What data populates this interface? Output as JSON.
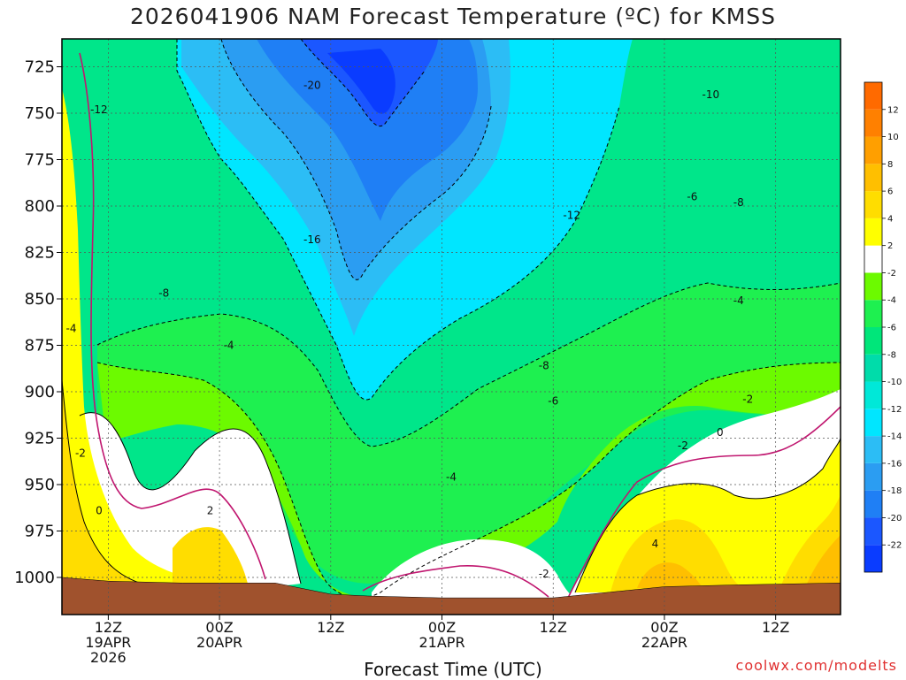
{
  "chart_data": {
    "type": "contour",
    "title": "2026041906 NAM Forecast Temperature (ºC) for KMSS",
    "xlabel": "Forecast Time (UTC)",
    "ylabel": "",
    "watermark": "coolwx.com/modelts",
    "y_axis": {
      "inverted": true,
      "range": [
        1020,
        710
      ],
      "ticks": [
        725,
        750,
        775,
        800,
        825,
        850,
        875,
        900,
        925,
        950,
        975,
        1000
      ]
    },
    "x_axis": {
      "range_hours": [
        7,
        91
      ],
      "ticks": [
        {
          "hour": 12,
          "lines": [
            "12Z",
            "19APR",
            "2026"
          ]
        },
        {
          "hour": 24,
          "lines": [
            "00Z",
            "20APR"
          ]
        },
        {
          "hour": 36,
          "lines": [
            "12Z"
          ]
        },
        {
          "hour": 48,
          "lines": [
            "00Z",
            "21APR"
          ]
        },
        {
          "hour": 60,
          "lines": [
            "12Z"
          ]
        },
        {
          "hour": 72,
          "lines": [
            "00Z",
            "22APR"
          ]
        },
        {
          "hour": 84,
          "lines": [
            "12Z"
          ]
        }
      ]
    },
    "colorbar": {
      "levels": [
        {
          "min": -24,
          "max": -22,
          "color": "#0a3cff"
        },
        {
          "min": -22,
          "max": -20,
          "color": "#1b57ff"
        },
        {
          "min": -20,
          "max": -18,
          "color": "#1f7ff5"
        },
        {
          "min": -18,
          "max": -16,
          "color": "#2b9df2"
        },
        {
          "min": -16,
          "max": -14,
          "color": "#2cbdf5"
        },
        {
          "min": -14,
          "max": -12,
          "color": "#00e6ff"
        },
        {
          "min": -12,
          "max": -10,
          "color": "#00e8d8"
        },
        {
          "min": -10,
          "max": -8,
          "color": "#00dcaa"
        },
        {
          "min": -8,
          "max": -6,
          "color": "#00e67a"
        },
        {
          "min": -6,
          "max": -4,
          "color": "#1ef050"
        },
        {
          "min": -4,
          "max": -2,
          "color": "#6cfa00"
        },
        {
          "min": -2,
          "max": 2,
          "color": "#ffffff"
        },
        {
          "min": 2,
          "max": 4,
          "color": "#ffff00"
        },
        {
          "min": 4,
          "max": 6,
          "color": "#ffdd00"
        },
        {
          "min": 6,
          "max": 8,
          "color": "#ffbf00"
        },
        {
          "min": 8,
          "max": 10,
          "color": "#ff9f00"
        },
        {
          "min": 10,
          "max": 12,
          "color": "#ff8000"
        },
        {
          "min": 12,
          "max": 14,
          "color": "#ff6a00"
        }
      ],
      "tick_labels": [
        "-22",
        "-20",
        "-18",
        "-16",
        "-14",
        "-12",
        "-10",
        "-8",
        "-6",
        "-4",
        "-2",
        "2",
        "4",
        "6",
        "8",
        "10",
        "12"
      ]
    },
    "isotherm_labels": [
      {
        "text": "-20",
        "hour": 34,
        "p": 735
      },
      {
        "text": "-12",
        "hour": 11,
        "p": 748
      },
      {
        "text": "-10",
        "hour": 77,
        "p": 740
      },
      {
        "text": "-6",
        "hour": 75,
        "p": 795
      },
      {
        "text": "-8",
        "hour": 80,
        "p": 798
      },
      {
        "text": "-16",
        "hour": 34,
        "p": 818
      },
      {
        "text": "-12",
        "hour": 62,
        "p": 805
      },
      {
        "text": "-8",
        "hour": 18,
        "p": 847
      },
      {
        "text": "-4",
        "hour": 8,
        "p": 866
      },
      {
        "text": "-4",
        "hour": 25,
        "p": 875
      },
      {
        "text": "-4",
        "hour": 80,
        "p": 851
      },
      {
        "text": "-8",
        "hour": 59,
        "p": 886
      },
      {
        "text": "-6",
        "hour": 60,
        "p": 905
      },
      {
        "text": "-2",
        "hour": 81,
        "p": 904
      },
      {
        "text": "-2",
        "hour": 9,
        "p": 933
      },
      {
        "text": "0",
        "hour": 78,
        "p": 922
      },
      {
        "text": "-2",
        "hour": 74,
        "p": 929
      },
      {
        "text": "-4",
        "hour": 49,
        "p": 946
      },
      {
        "text": "0",
        "hour": 11,
        "p": 964
      },
      {
        "text": "2",
        "hour": 23,
        "p": 964
      },
      {
        "text": "4",
        "hour": 71,
        "p": 982
      },
      {
        "text": "-2",
        "hour": 59,
        "p": 998
      }
    ],
    "surface_pressure_hpa": [
      {
        "hour": 7,
        "p": 1000
      },
      {
        "hour": 12,
        "p": 1002
      },
      {
        "hour": 20,
        "p": 1003
      },
      {
        "hour": 30,
        "p": 1003
      },
      {
        "hour": 36,
        "p": 1009
      },
      {
        "hour": 40,
        "p": 1010
      },
      {
        "hour": 48,
        "p": 1011
      },
      {
        "hour": 52,
        "p": 1011
      },
      {
        "hour": 60,
        "p": 1011
      },
      {
        "hour": 66,
        "p": 1008
      },
      {
        "hour": 72,
        "p": 1005
      },
      {
        "hour": 80,
        "p": 1004
      },
      {
        "hour": 91,
        "p": 1003
      }
    ]
  }
}
